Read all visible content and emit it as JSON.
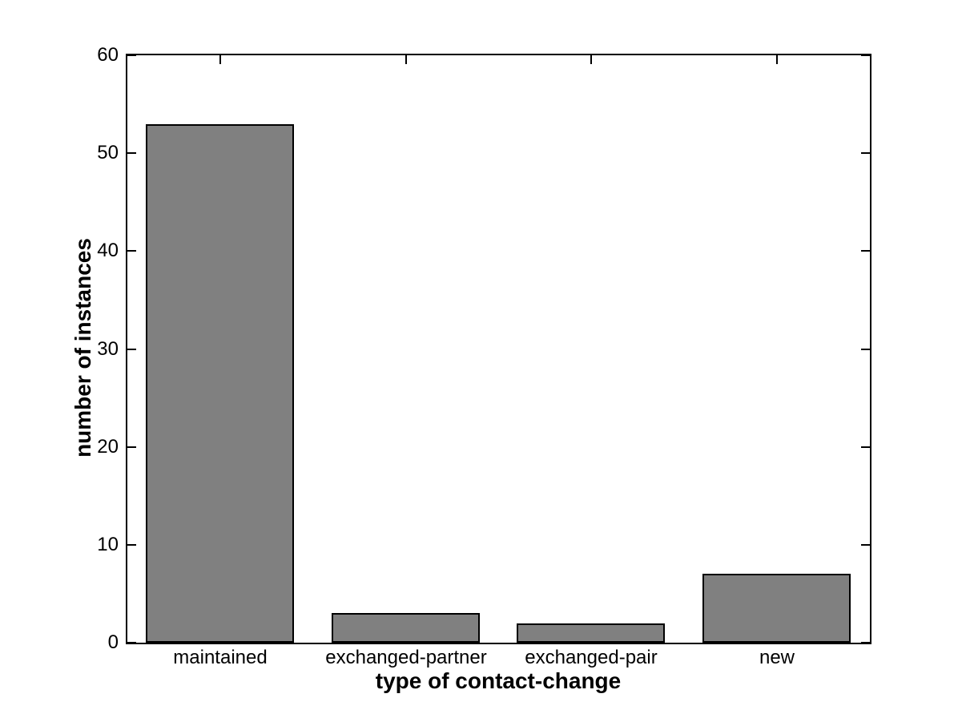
{
  "chart_data": {
    "type": "bar",
    "title": "",
    "categories": [
      "maintained",
      "exchanged-partner",
      "exchanged-pair",
      "new"
    ],
    "values": [
      53,
      3,
      2,
      7
    ],
    "xlabel": "type of contact-change",
    "ylabel": "number of instances",
    "ylim": [
      0,
      60
    ],
    "yticks": [
      0,
      10,
      20,
      30,
      40,
      50,
      60
    ],
    "grid": "off",
    "legend": "none",
    "bar_width_fraction": 0.8,
    "colors": {
      "bar_fill": "#808080",
      "bar_edge": "#000000",
      "axis": "#000000",
      "text": "#000000",
      "background": "#ffffff"
    }
  }
}
